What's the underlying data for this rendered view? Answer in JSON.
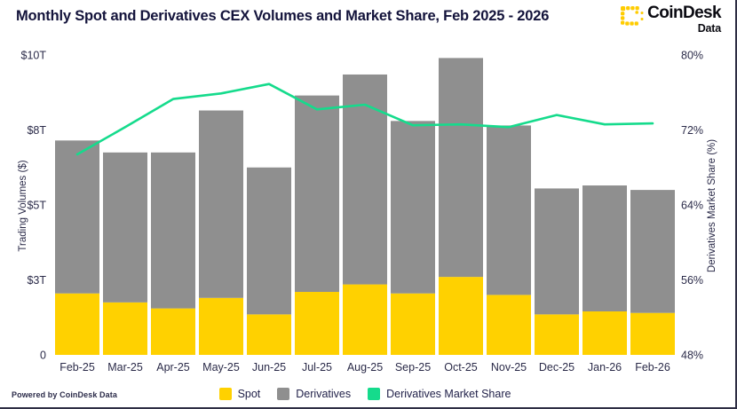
{
  "header": {
    "title": "Monthly Spot and Derivatives CEX Volumes and Market Share, Feb 2025 - 2026",
    "logo": {
      "brand": "CoinDesk",
      "sub": "Data",
      "icon_color": "#ffcc00"
    }
  },
  "footer": {
    "powered_by": "Powered by CoinDesk Data"
  },
  "legend": {
    "items": [
      {
        "label": "Spot",
        "color": "#ffd100"
      },
      {
        "label": "Derivatives",
        "color": "#8f8f8f"
      },
      {
        "label": "Derivatives Market Share",
        "color": "#15db8c"
      }
    ]
  },
  "chart_data": {
    "type": "combo-stacked-bar-line",
    "title": "Monthly Spot and Derivatives CEX Volumes and Market Share, Feb 2025 - 2026",
    "grid": false,
    "legend_position": "bottom",
    "categories": [
      "Feb-25",
      "Mar-25",
      "Apr-25",
      "May-25",
      "Jun-25",
      "Jul-25",
      "Aug-25",
      "Sep-25",
      "Oct-25",
      "Nov-25",
      "Dec-25",
      "Jan-26",
      "Feb-26"
    ],
    "series": [
      {
        "name": "Spot",
        "type": "bar",
        "stack": "volume",
        "axis": "left",
        "unit": "trillion USD",
        "color": "#ffd100",
        "values": [
          2.05,
          1.75,
          1.55,
          1.9,
          1.35,
          2.1,
          2.35,
          2.05,
          2.6,
          2.0,
          1.35,
          1.45,
          1.4
        ]
      },
      {
        "name": "Derivatives",
        "type": "bar",
        "stack": "volume",
        "axis": "left",
        "unit": "trillion USD",
        "color": "#8f8f8f",
        "values": [
          5.1,
          5.0,
          5.2,
          6.25,
          4.9,
          6.55,
          7.0,
          5.75,
          7.3,
          5.65,
          4.2,
          4.2,
          4.1
        ]
      },
      {
        "name": "Derivatives Market Share",
        "type": "line",
        "axis": "right",
        "unit": "%",
        "color": "#15db8c",
        "values": [
          69.4,
          72.3,
          75.3,
          75.9,
          76.9,
          74.2,
          74.7,
          72.5,
          72.6,
          72.3,
          73.6,
          72.6,
          72.7
        ]
      }
    ],
    "left_axis": {
      "label": "Trading Volumes ($)",
      "ylim": [
        0,
        10
      ],
      "ticks": [
        {
          "value": 0,
          "label": "0"
        },
        {
          "value": 2.5,
          "label": "$3T"
        },
        {
          "value": 5,
          "label": "$5T"
        },
        {
          "value": 7.5,
          "label": "$8T"
        },
        {
          "value": 10,
          "label": "$10T"
        }
      ]
    },
    "right_axis": {
      "label": "Derivatives Market Share (%)",
      "ylim": [
        48,
        80
      ],
      "ticks": [
        {
          "value": 48,
          "label": "48%"
        },
        {
          "value": 56,
          "label": "56%"
        },
        {
          "value": 64,
          "label": "64%"
        },
        {
          "value": 72,
          "label": "72%"
        },
        {
          "value": 80,
          "label": "80%"
        }
      ]
    }
  }
}
